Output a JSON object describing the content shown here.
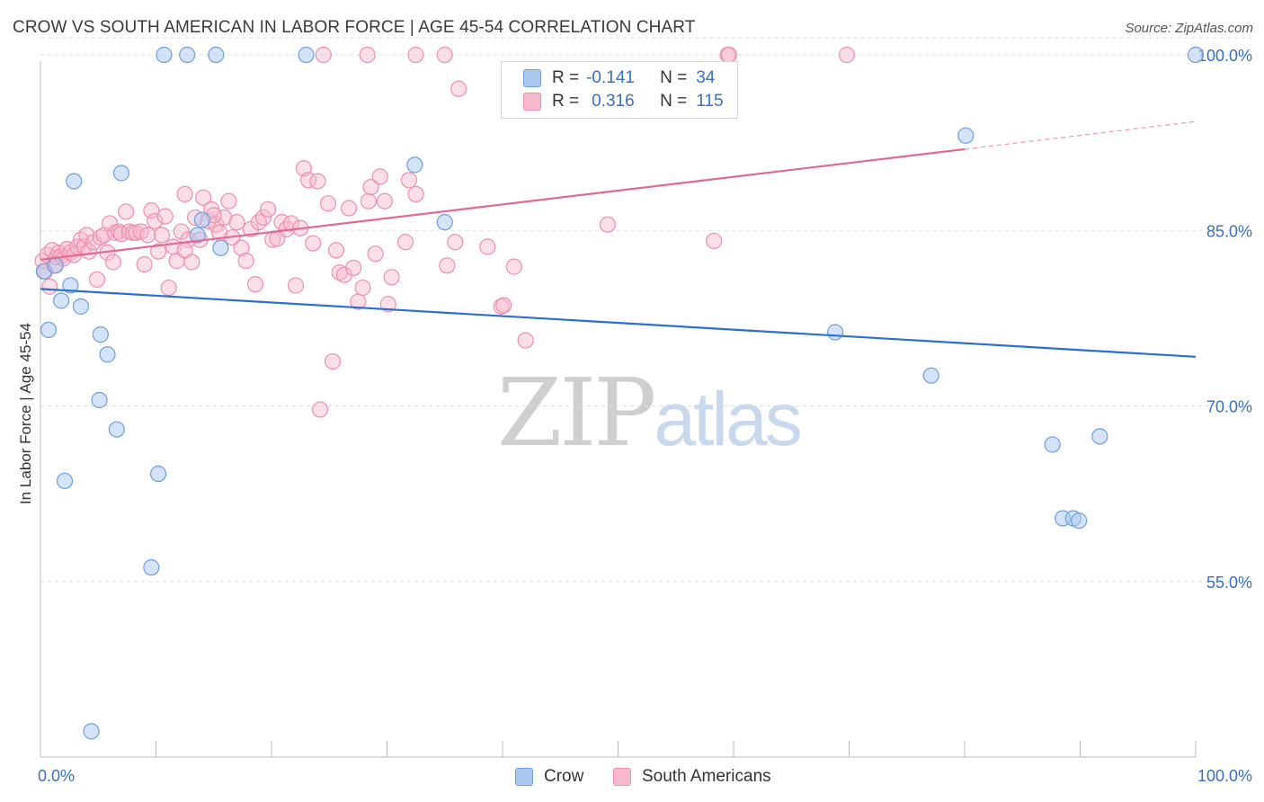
{
  "header": {
    "title": "CROW VS SOUTH AMERICAN IN LABOR FORCE | AGE 45-54 CORRELATION CHART",
    "source": "Source: ZipAtlas.com"
  },
  "legend_top": {
    "rows": [
      {
        "r_label": "R = ",
        "r_value": "-0.141",
        "n_label": "N = ",
        "n_value": "34"
      },
      {
        "r_label": "R = ",
        "r_value": "0.316",
        "n_label": "N = ",
        "n_value": "115"
      }
    ]
  },
  "legend_bottom": {
    "items": [
      {
        "label": "Crow"
      },
      {
        "label": "South Americans"
      }
    ]
  },
  "watermark": {
    "zip": "ZIP",
    "atlas": "atlas"
  },
  "colors": {
    "crow_fill": "#a9c8f0",
    "crow_stroke": "#6d9fe0",
    "crow_line": "#2b6fcf",
    "sa_fill": "#f7b9cc",
    "sa_stroke": "#ee8fad",
    "sa_line": "#e06a93",
    "axis_text": "#3a6fc4",
    "grid": "#dddddd"
  },
  "chart_data": {
    "type": "scatter",
    "title": "CROW VS SOUTH AMERICAN IN LABOR FORCE | AGE 45-54 CORRELATION CHART",
    "xlabel": "",
    "ylabel": "In Labor Force | Age 45-54",
    "xlim": [
      0,
      100
    ],
    "ylim": [
      40,
      101
    ],
    "x_tick_labels": [
      {
        "value": 0,
        "label": "0.0%"
      },
      {
        "value": 100,
        "label": "100.0%"
      }
    ],
    "y_tick_labels": [
      {
        "value": 55,
        "label": "55.0%"
      },
      {
        "value": 70,
        "label": "70.0%"
      },
      {
        "value": 85,
        "label": "85.0%"
      },
      {
        "value": 100,
        "label": "100.0%"
      }
    ],
    "series": [
      {
        "name": "Crow",
        "r": -0.141,
        "n": 34,
        "trend": {
          "x0": 0,
          "y0": 80.0,
          "x1": 100,
          "y1": 74.2
        },
        "points": [
          [
            0.3,
            81.5
          ],
          [
            0.7,
            76.5
          ],
          [
            1.3,
            82.0
          ],
          [
            1.8,
            79.0
          ],
          [
            2.1,
            63.6
          ],
          [
            2.6,
            80.3
          ],
          [
            2.9,
            89.2
          ],
          [
            3.5,
            78.5
          ],
          [
            4.4,
            42.2
          ],
          [
            5.1,
            70.5
          ],
          [
            5.2,
            76.1
          ],
          [
            5.8,
            74.4
          ],
          [
            6.6,
            68.0
          ],
          [
            7.0,
            89.9
          ],
          [
            9.6,
            56.2
          ],
          [
            10.2,
            64.2
          ],
          [
            10.7,
            100
          ],
          [
            12.7,
            100
          ],
          [
            13.6,
            84.6
          ],
          [
            14.0,
            85.9
          ],
          [
            15.2,
            100
          ],
          [
            15.6,
            83.5
          ],
          [
            23.0,
            100
          ],
          [
            32.4,
            90.6
          ],
          [
            35.0,
            85.7
          ],
          [
            68.8,
            76.3
          ],
          [
            77.1,
            72.6
          ],
          [
            80.1,
            93.1
          ],
          [
            87.6,
            66.7
          ],
          [
            88.5,
            60.4
          ],
          [
            89.4,
            60.4
          ],
          [
            89.9,
            60.2
          ],
          [
            91.7,
            67.4
          ],
          [
            100.0,
            100
          ]
        ]
      },
      {
        "name": "South Americans",
        "r": 0.316,
        "n": 115,
        "trend": {
          "x0": 0,
          "y0": 82.5,
          "x1": 100,
          "y1": 94.3,
          "solid_until_x": 80
        },
        "points": [
          [
            0.2,
            82.4
          ],
          [
            0.4,
            81.5
          ],
          [
            0.6,
            82.9
          ],
          [
            0.8,
            80.2
          ],
          [
            1.0,
            83.3
          ],
          [
            1.2,
            82.0
          ],
          [
            1.4,
            82.7
          ],
          [
            1.6,
            83.1
          ],
          [
            1.8,
            82.8
          ],
          [
            2.0,
            82.6
          ],
          [
            2.3,
            83.4
          ],
          [
            2.6,
            83.1
          ],
          [
            2.9,
            82.9
          ],
          [
            3.2,
            83.6
          ],
          [
            3.5,
            84.2
          ],
          [
            3.8,
            83.6
          ],
          [
            4.0,
            84.6
          ],
          [
            4.2,
            83.2
          ],
          [
            4.6,
            84.0
          ],
          [
            4.9,
            80.8
          ],
          [
            5.2,
            84.4
          ],
          [
            5.5,
            84.6
          ],
          [
            5.8,
            83.1
          ],
          [
            6.0,
            85.6
          ],
          [
            6.3,
            82.3
          ],
          [
            6.5,
            84.8
          ],
          [
            6.8,
            84.9
          ],
          [
            7.0,
            84.7
          ],
          [
            7.4,
            86.6
          ],
          [
            7.7,
            84.9
          ],
          [
            8.0,
            84.8
          ],
          [
            8.3,
            84.8
          ],
          [
            8.7,
            84.9
          ],
          [
            9.0,
            82.1
          ],
          [
            9.3,
            84.6
          ],
          [
            9.6,
            86.7
          ],
          [
            9.9,
            85.8
          ],
          [
            10.2,
            83.2
          ],
          [
            10.5,
            84.6
          ],
          [
            10.8,
            86.2
          ],
          [
            11.1,
            80.1
          ],
          [
            11.5,
            83.6
          ],
          [
            11.8,
            82.4
          ],
          [
            12.2,
            84.9
          ],
          [
            12.5,
            88.1
          ],
          [
            12.8,
            84.2
          ],
          [
            13.1,
            82.3
          ],
          [
            13.4,
            86.1
          ],
          [
            13.8,
            84.2
          ],
          [
            14.1,
            87.8
          ],
          [
            14.5,
            85.8
          ],
          [
            14.8,
            86.8
          ],
          [
            15.2,
            85.5
          ],
          [
            15.5,
            84.8
          ],
          [
            15.9,
            86.1
          ],
          [
            16.3,
            87.5
          ],
          [
            16.6,
            84.4
          ],
          [
            17.0,
            85.7
          ],
          [
            17.4,
            83.5
          ],
          [
            17.8,
            82.4
          ],
          [
            18.2,
            85.1
          ],
          [
            18.6,
            80.4
          ],
          [
            18.9,
            85.7
          ],
          [
            19.3,
            86.1
          ],
          [
            19.7,
            86.8
          ],
          [
            20.1,
            84.2
          ],
          [
            20.5,
            84.3
          ],
          [
            20.9,
            85.7
          ],
          [
            21.3,
            85.1
          ],
          [
            21.7,
            85.6
          ],
          [
            22.1,
            80.3
          ],
          [
            22.5,
            85.2
          ],
          [
            22.8,
            90.3
          ],
          [
            23.2,
            89.3
          ],
          [
            23.6,
            83.9
          ],
          [
            24.0,
            89.2
          ],
          [
            24.2,
            69.7
          ],
          [
            24.9,
            87.3
          ],
          [
            25.3,
            73.8
          ],
          [
            25.6,
            83.3
          ],
          [
            25.9,
            81.4
          ],
          [
            26.3,
            81.2
          ],
          [
            26.7,
            86.9
          ],
          [
            27.1,
            81.8
          ],
          [
            27.5,
            78.9
          ],
          [
            27.9,
            80.1
          ],
          [
            28.4,
            87.5
          ],
          [
            28.6,
            88.7
          ],
          [
            29.0,
            83.0
          ],
          [
            29.4,
            89.6
          ],
          [
            29.8,
            87.5
          ],
          [
            30.1,
            78.7
          ],
          [
            30.4,
            81.0
          ],
          [
            31.6,
            84.0
          ],
          [
            31.9,
            89.3
          ],
          [
            32.5,
            88.1
          ],
          [
            35.2,
            82.0
          ],
          [
            35.9,
            84.0
          ],
          [
            36.2,
            97.1
          ],
          [
            38.7,
            83.6
          ],
          [
            39.9,
            78.5
          ],
          [
            40.1,
            78.6
          ],
          [
            41.0,
            81.9
          ],
          [
            42.0,
            75.6
          ],
          [
            49.1,
            85.5
          ],
          [
            58.3,
            84.1
          ],
          [
            12.5,
            83.3
          ],
          [
            15.0,
            86.3
          ],
          [
            24.5,
            100
          ],
          [
            28.3,
            100
          ],
          [
            32.5,
            100
          ],
          [
            35.0,
            100
          ],
          [
            59.5,
            100
          ],
          [
            59.6,
            100
          ],
          [
            69.8,
            100
          ]
        ]
      }
    ]
  }
}
